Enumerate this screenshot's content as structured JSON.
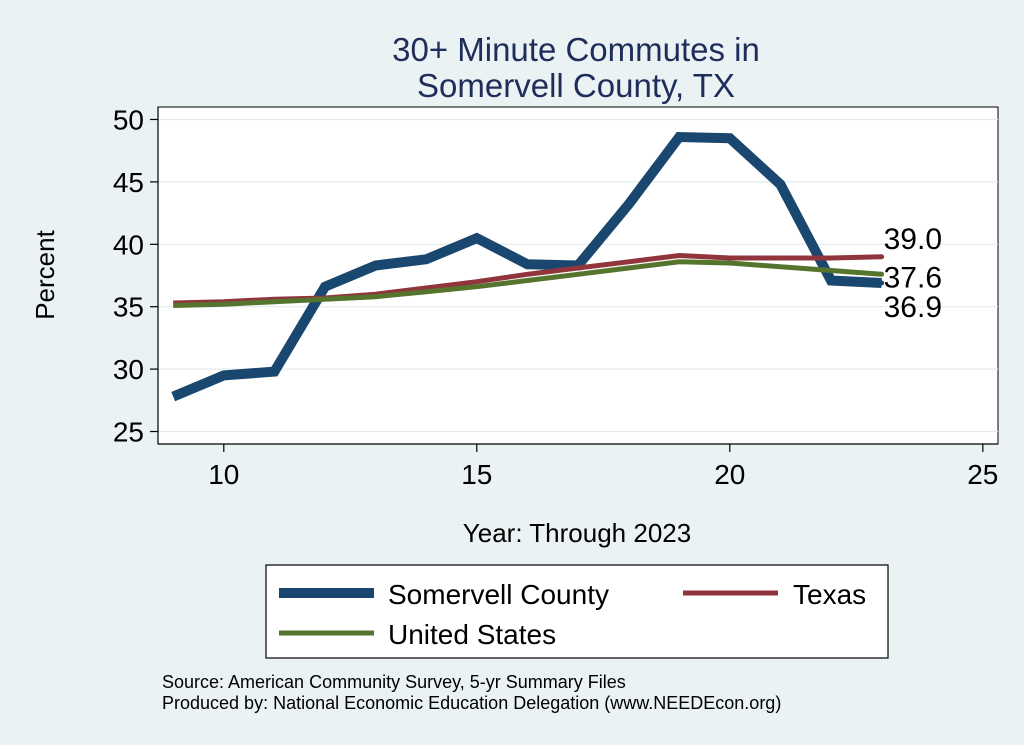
{
  "chart_data": {
    "type": "line",
    "title_lines": [
      "30+ Minute Commutes in",
      "Somervell County, TX"
    ],
    "xlabel": "Year: Through 2023",
    "ylabel": "Percent",
    "xlim": [
      8.7,
      25.3
    ],
    "ylim": [
      24,
      51
    ],
    "xticks": [
      10,
      15,
      20,
      25
    ],
    "yticks": [
      25,
      30,
      35,
      40,
      45,
      50
    ],
    "grid": true,
    "x": [
      9,
      10,
      11,
      12,
      13,
      14,
      15,
      16,
      17,
      18,
      19,
      20,
      21,
      22,
      23
    ],
    "series": [
      {
        "name": "Somervell County",
        "color": "#1a476f",
        "values": [
          27.8,
          29.5,
          29.8,
          36.6,
          38.3,
          38.8,
          40.5,
          38.4,
          38.3,
          43.2,
          48.6,
          48.5,
          44.8,
          37.1,
          36.9
        ]
      },
      {
        "name": "Texas",
        "color": "#90353b",
        "values": [
          35.3,
          35.4,
          35.6,
          35.7,
          36.0,
          36.5,
          37.0,
          37.6,
          38.1,
          38.6,
          39.1,
          38.9,
          38.9,
          38.9,
          39.0
        ]
      },
      {
        "name": "United States",
        "color": "#55752f",
        "values": [
          35.1,
          35.2,
          35.4,
          35.6,
          35.8,
          36.2,
          36.6,
          37.1,
          37.6,
          38.1,
          38.6,
          38.5,
          38.2,
          37.9,
          37.6
        ]
      }
    ],
    "end_labels": [
      "39.0",
      "37.6",
      "36.9"
    ],
    "legend_placement": "bottom"
  },
  "footer": {
    "source": "Source: American Community Survey, 5-yr Summary Files",
    "produced": "Produced by: National Economic Education Delegation (www.NEEDEcon.org)"
  }
}
